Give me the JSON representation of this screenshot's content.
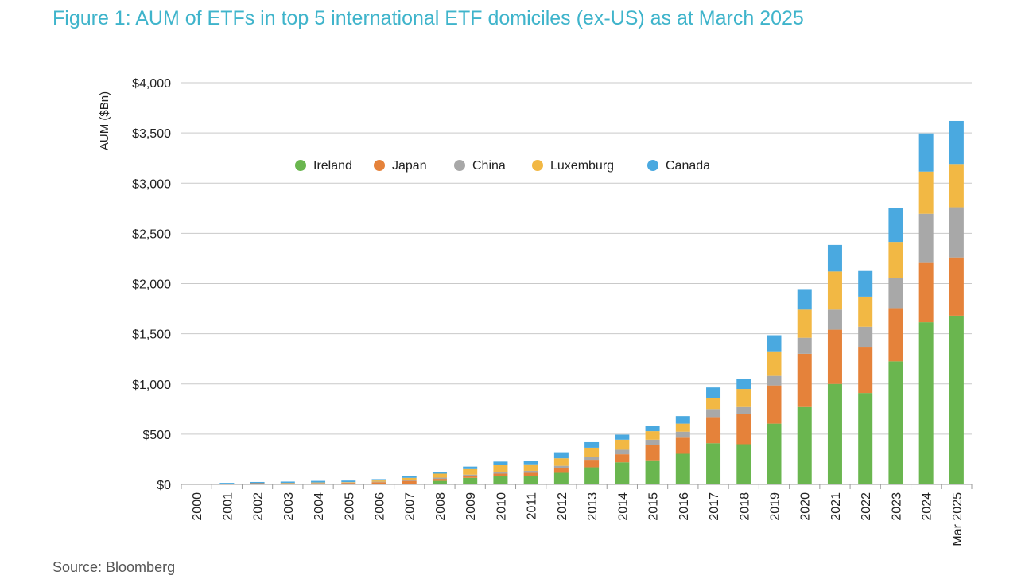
{
  "title": "Figure 1: AUM of ETFs in top 5 international ETF domiciles (ex-US) as at March 2025",
  "source": "Source: Bloomberg",
  "chart_data": {
    "type": "bar",
    "stacked": true,
    "title": "Figure 1: AUM of ETFs in top 5 international ETF domiciles (ex-US) as at March 2025",
    "xlabel": "",
    "ylabel": "AUM ($Bn)",
    "ylim": [
      0,
      4000
    ],
    "yticks": [
      0,
      500,
      1000,
      1500,
      2000,
      2500,
      3000,
      3500,
      4000
    ],
    "ytick_labels": [
      "$0",
      "$500",
      "$1,000",
      "$1,500",
      "$2,000",
      "$2,500",
      "$3,000",
      "$3,500",
      "$4,000"
    ],
    "grid": true,
    "legend_position": "top-left inside plot",
    "categories": [
      "2000",
      "2001",
      "2002",
      "2003",
      "2004",
      "2005",
      "2006",
      "2007",
      "2008",
      "2009",
      "2010",
      "2011",
      "2012",
      "2013",
      "2014",
      "2015",
      "2016",
      "2017",
      "2018",
      "2019",
      "2020",
      "2021",
      "2022",
      "2023",
      "2024",
      "Mar 2025"
    ],
    "series": [
      {
        "name": "Ireland",
        "color": "#6ab64f",
        "values": [
          0,
          0,
          0,
          0,
          0,
          0,
          0,
          5,
          35,
          65,
          85,
          85,
          115,
          170,
          220,
          240,
          305,
          410,
          400,
          605,
          770,
          1000,
          910,
          1225,
          1615,
          1680
        ]
      },
      {
        "name": "Japan",
        "color": "#e5823a",
        "values": [
          0,
          3,
          12,
          12,
          12,
          15,
          22,
          30,
          20,
          20,
          22,
          30,
          45,
          75,
          80,
          150,
          160,
          260,
          300,
          380,
          530,
          540,
          460,
          530,
          590,
          580
        ]
      },
      {
        "name": "China",
        "color": "#a8a8a8",
        "values": [
          0,
          0,
          0,
          0,
          2,
          3,
          5,
          5,
          12,
          12,
          15,
          20,
          25,
          30,
          45,
          55,
          60,
          80,
          70,
          95,
          160,
          200,
          200,
          300,
          490,
          500
        ]
      },
      {
        "name": "Luxemburg",
        "color": "#f2b844",
        "values": [
          0,
          0,
          0,
          2,
          5,
          5,
          12,
          25,
          40,
          55,
          70,
          65,
          75,
          90,
          100,
          85,
          80,
          110,
          180,
          245,
          280,
          380,
          300,
          360,
          420,
          430
        ]
      },
      {
        "name": "Canada",
        "color": "#4aa9e0",
        "values": [
          0,
          12,
          12,
          14,
          16,
          15,
          13,
          15,
          15,
          25,
          35,
          35,
          60,
          55,
          50,
          55,
          75,
          105,
          100,
          160,
          205,
          265,
          255,
          340,
          380,
          430
        ]
      }
    ]
  }
}
